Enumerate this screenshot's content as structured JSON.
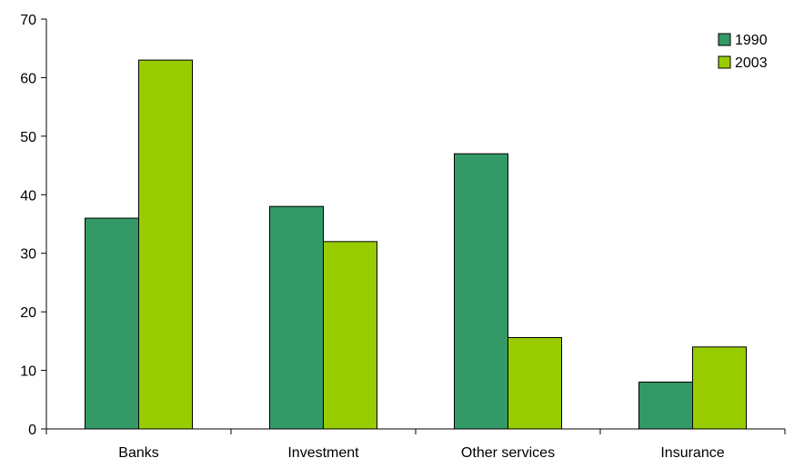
{
  "chart_data": {
    "type": "bar",
    "title": "",
    "xlabel": "",
    "ylabel": "",
    "categories": [
      "Banks",
      "Investment",
      "Other services",
      "Insurance"
    ],
    "series": [
      {
        "name": "1990",
        "values": [
          36,
          38,
          47,
          8
        ],
        "color": "#339966"
      },
      {
        "name": "2003",
        "values": [
          63,
          32,
          15.6,
          14
        ],
        "color": "#99cc00"
      }
    ],
    "ylim": [
      0,
      70
    ],
    "yticks": [
      0,
      10,
      20,
      30,
      40,
      50,
      60,
      70
    ],
    "grid": false,
    "legend_position": "top-right"
  }
}
